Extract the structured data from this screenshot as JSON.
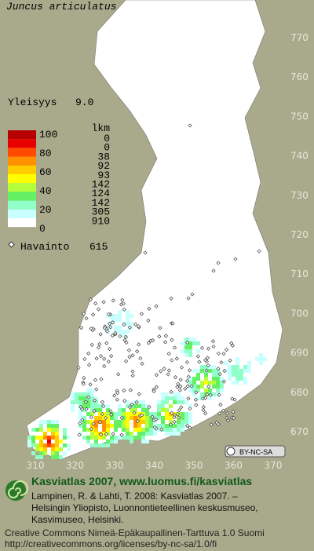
{
  "title": "Juncus articulatus",
  "frequency": {
    "label": "Yleisyys",
    "value": "9.0"
  },
  "legend": {
    "classes": [
      "100",
      "80",
      "60",
      "40",
      "20",
      "0"
    ],
    "count_header": "lkm",
    "counts": [
      "0",
      "0",
      "38",
      "92",
      "93",
      "142",
      "124",
      "142",
      "305",
      "910"
    ]
  },
  "observations": {
    "label": "Havainto",
    "count": "615"
  },
  "grid": {
    "y_labels": [
      770,
      760,
      750,
      740,
      730,
      720,
      710,
      700,
      690,
      680,
      670
    ],
    "x_labels": [
      310,
      320,
      330,
      340,
      350,
      360,
      370
    ]
  },
  "license_badge": "BY-NC-SA",
  "footer": {
    "heading": "Kasviatlas 2007, www.luomus.fi/kasviatlas",
    "citation": [
      "Lampinen, R. & Lahti, T. 2008: Kasviatlas 2007. –",
      "Helsingin Yliopisto, Luonnontieteellinen keskusmuseo,",
      "Kasvimuseo, Helsinki."
    ],
    "license": [
      "Creative Commons Nimeä-Epäkaupallinen-Tarttuva 1.0 Suomi",
      "http://creativecommons.org/licenses/by-nc-sa/1.0/fi"
    ]
  }
}
